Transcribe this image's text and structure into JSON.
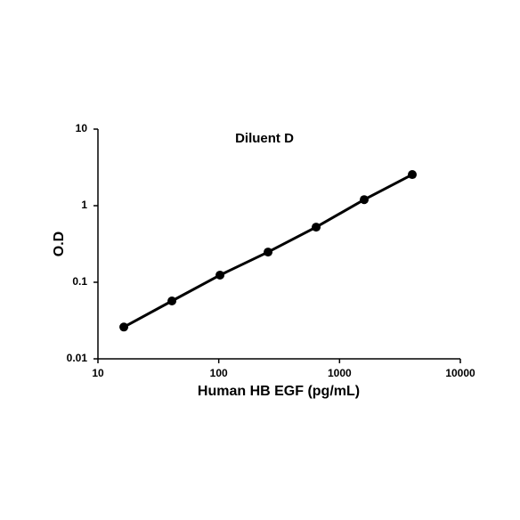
{
  "chart_data": {
    "type": "line",
    "title": "Diluent D",
    "x_label": "Human HB EGF (pg/mL)",
    "y_label": "O.D",
    "xscale": "log",
    "yscale": "log",
    "xlim": [
      10,
      10000
    ],
    "ylim": [
      0.01,
      10
    ],
    "xticks": [
      10,
      100,
      1000,
      10000
    ],
    "yticks": [
      0.01,
      0.1,
      1,
      10
    ],
    "grid": false,
    "series": [
      {
        "color": "#000000",
        "x": [
          16.38,
          40.96,
          102.4,
          256,
          640,
          1600,
          4000
        ],
        "values": [
          0.026,
          0.057,
          0.124,
          0.248,
          0.525,
          1.2,
          2.55
        ]
      }
    ]
  }
}
